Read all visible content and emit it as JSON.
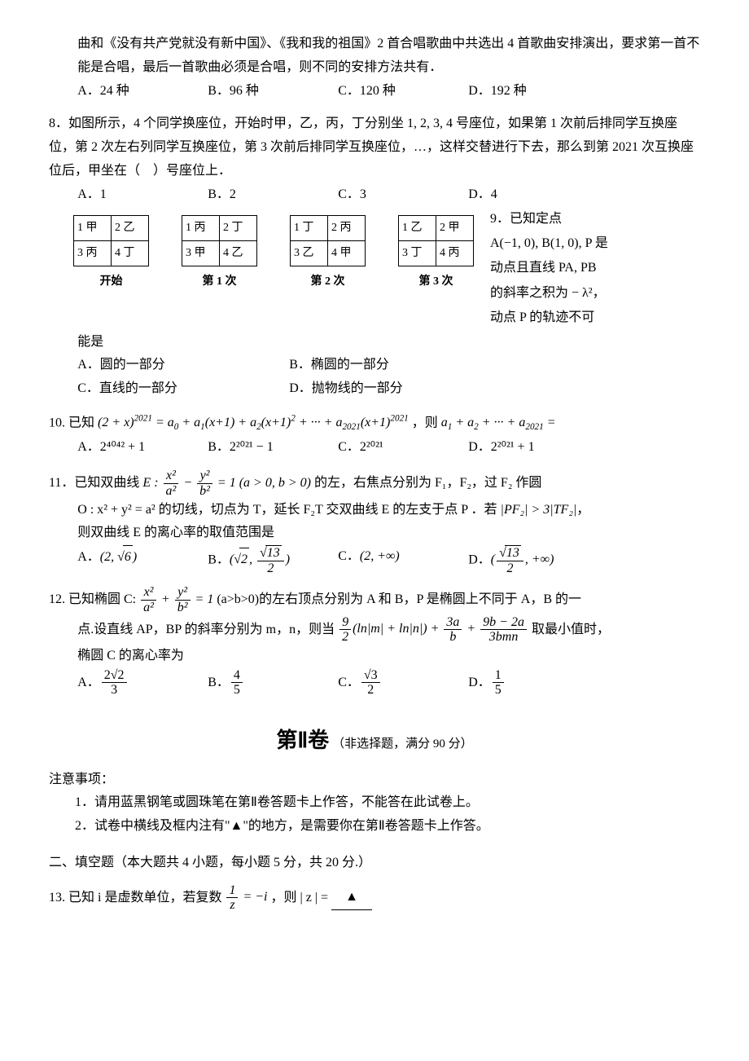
{
  "q7_tail": {
    "para1": "曲和《没有共产党就没有新中国》、《我和我的祖国》2 首合唱歌曲中共选出 4 首歌曲安排演出，要求第一首不能是合唱，最后一首歌曲必须是合唱，则不同的安排方法共有．",
    "options": [
      "A．24 种",
      "B．96 种",
      "C．120 种",
      "D．192 种"
    ]
  },
  "q8": {
    "stem": "8．如图所示，4 个同学换座位，开始时甲，乙，丙，丁分别坐 1, 2, 3, 4 号座位，如果第 1 次前后排同学互换座位，第 2 次左右列同学互换座位，第 3 次前后排同学互换座位，…，这样交替进行下去，那么到第 2021 次互换座位后，甲坐在（　）号座位上．",
    "options": [
      "A．1",
      "B．2",
      "C．3",
      "D．4"
    ],
    "seating": {
      "blocks": [
        {
          "caption": "开始",
          "cells": [
            [
              "1 甲",
              "2 乙"
            ],
            [
              "3 丙",
              "4 丁"
            ]
          ]
        },
        {
          "caption": "第 1 次",
          "cells": [
            [
              "1 丙",
              "2 丁"
            ],
            [
              "3 甲",
              "4 乙"
            ]
          ]
        },
        {
          "caption": "第 2 次",
          "cells": [
            [
              "1 丁",
              "2 丙"
            ],
            [
              "3 乙",
              "4 甲"
            ]
          ]
        },
        {
          "caption": "第 3 次",
          "cells": [
            [
              "1 乙",
              "2 甲"
            ],
            [
              "3 丁",
              "4 丙"
            ]
          ]
        }
      ]
    }
  },
  "q9": {
    "lead": "9．已知定点",
    "line2": "A(−1, 0), B(1, 0), P 是",
    "line3": "动点且直线 PA, PB",
    "line4": "的斜率之积为 − λ²，",
    "line5": "动点 P 的轨迹不可",
    "line6": "能是",
    "options": [
      "A．圆的一部分",
      "B．椭圆的一部分",
      "C．直线的一部分",
      "D．抛物线的一部分"
    ]
  },
  "q10": {
    "stem_text": "10. 已知",
    "stem_tail": "，则",
    "options": [
      "A．2⁴⁰⁴² + 1",
      "B．2²⁰²¹ − 1",
      "C．2²⁰²¹",
      "D．2²⁰²¹ + 1"
    ]
  },
  "q11": {
    "stem1": "11．已知双曲线 ",
    "stem2": " 的左，右焦点分别为 F₁，F₂，过 F₂ 作圆",
    "stem3_pre": "O : x² + y² = a² 的切线，切点为 T，延长 F₂T 交双曲线 E 的左支于点 P ．若 ",
    "stem3_cond": "|PF₂| > 3|TF₂|",
    "stem3_post": "，",
    "stem4": "则双曲线 E 的离心率的取值范围是",
    "options": {
      "A": "(2, √6)",
      "B_a": "√2",
      "B_b_num": "√13",
      "B_b_den": "2",
      "C": "(2, +∞)",
      "D_num": "√13",
      "D_den": "2"
    }
  },
  "q12": {
    "stem1": "12. 已知椭圆 C: ",
    "stem2": " (a>b>0)的左右顶点分别为 A 和 B，P 是椭圆上不同于 A，B 的一",
    "stem3": "点.设直线 AP，BP 的斜率分别为 m，n，则当 ",
    "stem4": " 取最小值时，",
    "stem5": "椭圆 C 的离心率为",
    "expr": {
      "t1_num": "9",
      "t1_den": "2",
      "t1_tail": "(ln|m| + ln|n|)",
      "t2_num": "3a",
      "t2_den": "b",
      "t3_num": "9b − 2a",
      "t3_den": "3bmn"
    },
    "options": {
      "A_num": "2√2",
      "A_den": "3",
      "B_num": "4",
      "B_den": "5",
      "C_num": "√3",
      "C_den": "2",
      "D_num": "1",
      "D_den": "5"
    }
  },
  "section2": {
    "title_big": "第Ⅱ卷",
    "title_small": "（非选择题，满分 90 分）",
    "notes_label": "注意事项：",
    "notes": [
      "1．请用蓝黑钢笔或圆珠笔在第Ⅱ卷答题卡上作答，不能答在此试卷上。",
      "2．试卷中横线及框内注有\"▲\"的地方，是需要你在第Ⅱ卷答题卡上作答。"
    ],
    "part_title": "二、填空题（本大题共 4 小题，每小题 5 分，共 20 分.）"
  },
  "q13": {
    "stem1": "13. 已知 i 是虚数单位，若复数 ",
    "stem2": "，则 | z | = ",
    "blank": "▲",
    "frac_num": "1",
    "frac_den": "z",
    "rhs": " = −i"
  },
  "styling": {
    "background_color": "#ffffff",
    "text_color": "#000000",
    "border_color": "#000000",
    "body_fontsize": 16,
    "table_cell_fontsize": 14,
    "section_big_fontsize": 26,
    "section_small_fontsize": 15,
    "font_family": "SimSun"
  }
}
